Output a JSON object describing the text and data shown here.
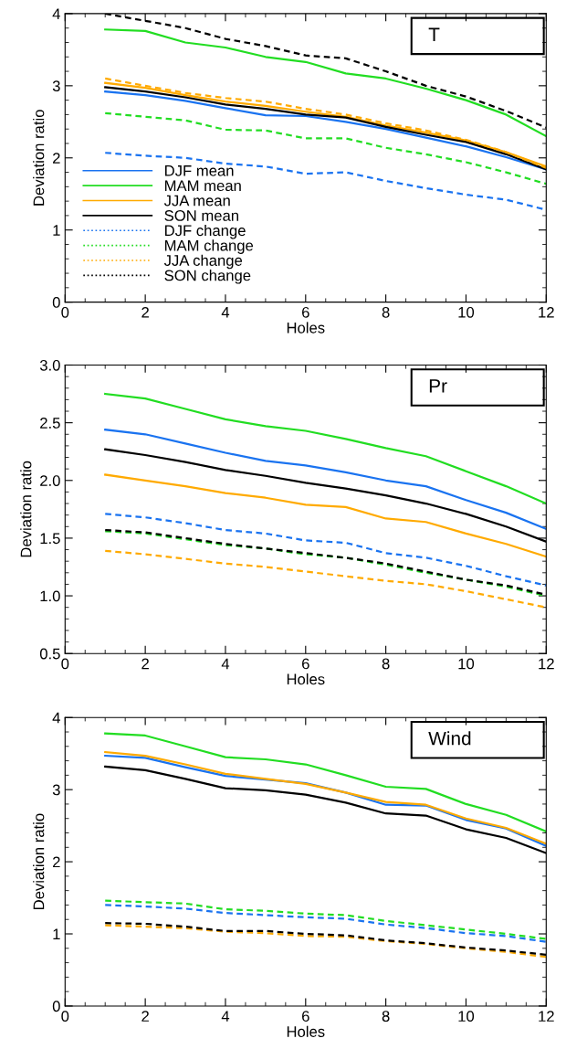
{
  "chart_data": [
    {
      "type": "line",
      "title": "T",
      "xlabel": "Holes",
      "ylabel": "Deviation ratio",
      "x": [
        1,
        2,
        3,
        4,
        5,
        6,
        7,
        8,
        9,
        10,
        11,
        12
      ],
      "xlim": [
        0,
        12
      ],
      "xticks": [
        0,
        2,
        4,
        6,
        8,
        10,
        12
      ],
      "ylim": [
        0,
        4
      ],
      "yticks": [
        0,
        1,
        2,
        3,
        4
      ],
      "grid": false,
      "legend": "lower left",
      "marker": "none",
      "series": [
        {
          "name": "DJF mean",
          "color": "#1a73f0",
          "line_style": "solid",
          "values": [
            2.92,
            2.87,
            2.79,
            2.69,
            2.59,
            2.58,
            2.5,
            2.4,
            2.28,
            2.16,
            2.01,
            1.84
          ]
        },
        {
          "name": "MAM mean",
          "color": "#22dd22",
          "line_style": "solid",
          "values": [
            3.78,
            3.76,
            3.6,
            3.53,
            3.4,
            3.33,
            3.17,
            3.1,
            2.96,
            2.8,
            2.6,
            2.3
          ]
        },
        {
          "name": "JJA mean",
          "color": "#ffaa00",
          "line_style": "solid",
          "values": [
            3.04,
            2.97,
            2.87,
            2.78,
            2.72,
            2.64,
            2.57,
            2.45,
            2.35,
            2.24,
            2.08,
            1.88
          ]
        },
        {
          "name": "SON mean",
          "color": "#000000",
          "line_style": "solid",
          "values": [
            2.98,
            2.92,
            2.84,
            2.74,
            2.68,
            2.6,
            2.56,
            2.43,
            2.32,
            2.22,
            2.05,
            1.84
          ]
        },
        {
          "name": "DJF change",
          "color": "#1a73f0",
          "line_style": "dashed",
          "values": [
            2.07,
            2.03,
            2.0,
            1.92,
            1.88,
            1.78,
            1.8,
            1.68,
            1.58,
            1.49,
            1.42,
            1.28
          ]
        },
        {
          "name": "MAM change",
          "color": "#22dd22",
          "line_style": "dashed",
          "values": [
            2.62,
            2.57,
            2.52,
            2.39,
            2.38,
            2.27,
            2.27,
            2.14,
            2.05,
            1.94,
            1.8,
            1.64
          ]
        },
        {
          "name": "JJA change",
          "color": "#ffaa00",
          "line_style": "dashed",
          "values": [
            3.1,
            3.0,
            2.9,
            2.83,
            2.78,
            2.68,
            2.6,
            2.48,
            2.38,
            2.25,
            2.08,
            1.86
          ]
        },
        {
          "name": "SON change",
          "color": "#000000",
          "line_style": "dashed",
          "values": [
            4.0,
            3.9,
            3.8,
            3.65,
            3.55,
            3.42,
            3.38,
            3.2,
            3.0,
            2.85,
            2.65,
            2.42
          ]
        }
      ]
    },
    {
      "type": "line",
      "title": "Pr",
      "xlabel": "Holes",
      "ylabel": "Deviation ratio",
      "x": [
        1,
        2,
        3,
        4,
        5,
        6,
        7,
        8,
        9,
        10,
        11,
        12
      ],
      "xlim": [
        0,
        12
      ],
      "xticks": [
        0,
        2,
        4,
        6,
        8,
        10,
        12
      ],
      "ylim": [
        0.5,
        3.0
      ],
      "yticks": [
        {
          "value": 0.5,
          "label": "0.5"
        },
        {
          "value": 1.0,
          "label": "1.0"
        },
        {
          "value": 1.5,
          "label": "1.5"
        },
        {
          "value": 2.0,
          "label": "2.0"
        },
        {
          "value": 2.5,
          "label": "2.5"
        },
        {
          "value": 3.0,
          "label": "3.0"
        }
      ],
      "grid": false,
      "legend": false,
      "marker": "none",
      "series": [
        {
          "color": "#1a73f0",
          "line_style": "solid",
          "values": [
            2.44,
            2.4,
            2.32,
            2.24,
            2.17,
            2.13,
            2.07,
            2.0,
            1.95,
            1.83,
            1.72,
            1.58
          ]
        },
        {
          "color": "#22dd22",
          "line_style": "solid",
          "values": [
            2.75,
            2.71,
            2.62,
            2.53,
            2.47,
            2.43,
            2.36,
            2.28,
            2.21,
            2.08,
            1.95,
            1.8
          ]
        },
        {
          "color": "#ffaa00",
          "line_style": "solid",
          "values": [
            2.05,
            2.0,
            1.95,
            1.89,
            1.85,
            1.79,
            1.77,
            1.67,
            1.64,
            1.54,
            1.45,
            1.34
          ]
        },
        {
          "color": "#000000",
          "line_style": "solid",
          "values": [
            2.27,
            2.22,
            2.16,
            2.09,
            2.04,
            1.98,
            1.93,
            1.87,
            1.8,
            1.71,
            1.6,
            1.47
          ]
        },
        {
          "color": "#1a73f0",
          "line_style": "dashed",
          "values": [
            1.71,
            1.68,
            1.63,
            1.57,
            1.54,
            1.48,
            1.46,
            1.37,
            1.33,
            1.26,
            1.17,
            1.09
          ]
        },
        {
          "color": "#22dd22",
          "line_style": "dashed",
          "values": [
            1.56,
            1.54,
            1.49,
            1.44,
            1.41,
            1.36,
            1.33,
            1.27,
            1.2,
            1.14,
            1.08,
            1.0
          ]
        },
        {
          "color": "#ffaa00",
          "line_style": "dashed",
          "values": [
            1.39,
            1.36,
            1.32,
            1.28,
            1.25,
            1.21,
            1.17,
            1.13,
            1.1,
            1.04,
            0.97,
            0.9
          ]
        },
        {
          "color": "#000000",
          "line_style": "dashed",
          "values": [
            1.57,
            1.55,
            1.5,
            1.45,
            1.41,
            1.37,
            1.33,
            1.28,
            1.21,
            1.14,
            1.09,
            1.01
          ]
        }
      ]
    },
    {
      "type": "line",
      "title": "Wind",
      "xlabel": "Holes",
      "ylabel": "Deviation ratio",
      "x": [
        1,
        2,
        3,
        4,
        5,
        6,
        7,
        8,
        9,
        10,
        11,
        12
      ],
      "xlim": [
        0,
        12
      ],
      "xticks": [
        0,
        2,
        4,
        6,
        8,
        10,
        12
      ],
      "ylim": [
        0,
        4
      ],
      "yticks": [
        0,
        1,
        2,
        3,
        4
      ],
      "grid": false,
      "legend": false,
      "marker": "none",
      "series": [
        {
          "color": "#1a73f0",
          "line_style": "solid",
          "values": [
            3.47,
            3.44,
            3.31,
            3.19,
            3.14,
            3.09,
            2.96,
            2.79,
            2.78,
            2.58,
            2.46,
            2.22
          ]
        },
        {
          "color": "#22dd22",
          "line_style": "solid",
          "values": [
            3.78,
            3.75,
            3.6,
            3.45,
            3.42,
            3.35,
            3.2,
            3.04,
            3.01,
            2.8,
            2.65,
            2.42
          ]
        },
        {
          "color": "#ffaa00",
          "line_style": "solid",
          "values": [
            3.52,
            3.47,
            3.35,
            3.22,
            3.15,
            3.08,
            2.96,
            2.83,
            2.79,
            2.6,
            2.47,
            2.25
          ]
        },
        {
          "color": "#000000",
          "line_style": "solid",
          "values": [
            3.32,
            3.27,
            3.15,
            3.02,
            2.99,
            2.93,
            2.82,
            2.67,
            2.64,
            2.45,
            2.33,
            2.12
          ]
        },
        {
          "color": "#1a73f0",
          "line_style": "dashed",
          "values": [
            1.4,
            1.38,
            1.35,
            1.29,
            1.26,
            1.23,
            1.21,
            1.13,
            1.08,
            1.01,
            0.97,
            0.89
          ]
        },
        {
          "color": "#22dd22",
          "line_style": "dashed",
          "values": [
            1.46,
            1.44,
            1.42,
            1.34,
            1.32,
            1.28,
            1.26,
            1.18,
            1.12,
            1.06,
            1.0,
            0.93
          ]
        },
        {
          "color": "#ffaa00",
          "line_style": "dashed",
          "values": [
            1.12,
            1.1,
            1.08,
            1.03,
            1.01,
            0.97,
            0.96,
            0.9,
            0.86,
            0.8,
            0.75,
            0.68
          ]
        },
        {
          "color": "#000000",
          "line_style": "dashed",
          "values": [
            1.15,
            1.14,
            1.1,
            1.04,
            1.04,
            1.0,
            0.98,
            0.91,
            0.87,
            0.81,
            0.77,
            0.71
          ]
        }
      ]
    }
  ]
}
